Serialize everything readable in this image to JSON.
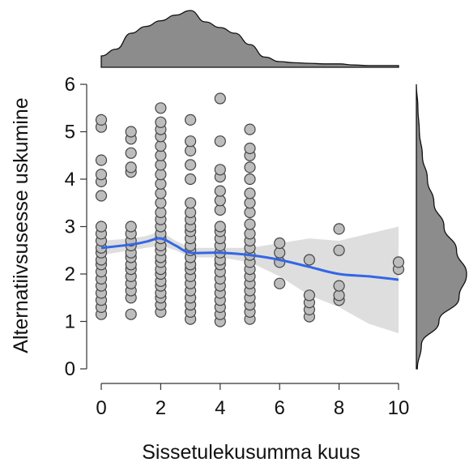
{
  "chart_data": {
    "type": "scatter",
    "title": "",
    "xlabel": "Sissetulekusumma kuus",
    "ylabel": "Alternatiivsusesse uskumine",
    "xlim": [
      0,
      10
    ],
    "ylim": [
      0,
      6
    ],
    "xticks": [
      "0",
      "2",
      "4",
      "6",
      "8",
      "10"
    ],
    "yticks": [
      "0",
      "1",
      "2",
      "3",
      "4",
      "5",
      "6"
    ],
    "grid": false,
    "legend": "none",
    "colors": {
      "points_fill": "#bdbdbd",
      "points_stroke": "#444444",
      "smooth_line": "#3366e6",
      "confidence_band": "#d3d3d3",
      "density_fill": "#8c8c8c"
    },
    "series": [
      {
        "points": [
          [
            0,
            1.15
          ],
          [
            0,
            1.3
          ],
          [
            0,
            1.45
          ],
          [
            0,
            1.6
          ],
          [
            0,
            1.75
          ],
          [
            0,
            1.9
          ],
          [
            0,
            2.05
          ],
          [
            0,
            2.2
          ],
          [
            0,
            2.3
          ],
          [
            0,
            2.45
          ],
          [
            0,
            2.55
          ],
          [
            0,
            2.7
          ],
          [
            0,
            2.85
          ],
          [
            0,
            3.0
          ],
          [
            0,
            3.65
          ],
          [
            0,
            3.95
          ],
          [
            0,
            4.1
          ],
          [
            0,
            4.4
          ],
          [
            0,
            5.1
          ],
          [
            0,
            5.25
          ],
          [
            1,
            1.15
          ],
          [
            1,
            1.5
          ],
          [
            1,
            1.65
          ],
          [
            1,
            1.8
          ],
          [
            1,
            1.95
          ],
          [
            1,
            2.1
          ],
          [
            1,
            2.2
          ],
          [
            1,
            2.35
          ],
          [
            1,
            2.45
          ],
          [
            1,
            2.6
          ],
          [
            1,
            2.7
          ],
          [
            1,
            2.85
          ],
          [
            1,
            3.0
          ],
          [
            1,
            4.15
          ],
          [
            1,
            4.25
          ],
          [
            1,
            4.55
          ],
          [
            1,
            4.85
          ],
          [
            1,
            5.0
          ],
          [
            2,
            1.2
          ],
          [
            2,
            1.35
          ],
          [
            2,
            1.5
          ],
          [
            2,
            1.6
          ],
          [
            2,
            1.75
          ],
          [
            2,
            1.85
          ],
          [
            2,
            2.0
          ],
          [
            2,
            2.1
          ],
          [
            2,
            2.25
          ],
          [
            2,
            2.35
          ],
          [
            2,
            2.5
          ],
          [
            2,
            2.6
          ],
          [
            2,
            2.75
          ],
          [
            2,
            2.85
          ],
          [
            2,
            3.0
          ],
          [
            2,
            3.15
          ],
          [
            2,
            3.3
          ],
          [
            2,
            3.5
          ],
          [
            2,
            3.7
          ],
          [
            2,
            3.9
          ],
          [
            2,
            4.1
          ],
          [
            2,
            4.3
          ],
          [
            2,
            4.5
          ],
          [
            2,
            4.7
          ],
          [
            2,
            4.9
          ],
          [
            2,
            5.05
          ],
          [
            2,
            5.2
          ],
          [
            2,
            5.5
          ],
          [
            3,
            1.05
          ],
          [
            3,
            1.2
          ],
          [
            3,
            1.35
          ],
          [
            3,
            1.5
          ],
          [
            3,
            1.65
          ],
          [
            3,
            1.8
          ],
          [
            3,
            1.95
          ],
          [
            3,
            2.1
          ],
          [
            3,
            2.2
          ],
          [
            3,
            2.35
          ],
          [
            3,
            2.5
          ],
          [
            3,
            2.6
          ],
          [
            3,
            2.75
          ],
          [
            3,
            2.9
          ],
          [
            3,
            3.0
          ],
          [
            3,
            3.15
          ],
          [
            3,
            3.3
          ],
          [
            3,
            3.5
          ],
          [
            3,
            4.0
          ],
          [
            3,
            4.3
          ],
          [
            3,
            4.6
          ],
          [
            3,
            4.8
          ],
          [
            3,
            5.25
          ],
          [
            4,
            1.0
          ],
          [
            4,
            1.15
          ],
          [
            4,
            1.3
          ],
          [
            4,
            1.45
          ],
          [
            4,
            1.6
          ],
          [
            4,
            1.75
          ],
          [
            4,
            1.9
          ],
          [
            4,
            2.05
          ],
          [
            4,
            2.2
          ],
          [
            4,
            2.3
          ],
          [
            4,
            2.45
          ],
          [
            4,
            2.6
          ],
          [
            4,
            2.75
          ],
          [
            4,
            2.9
          ],
          [
            4,
            3.0
          ],
          [
            4,
            3.35
          ],
          [
            4,
            3.55
          ],
          [
            4,
            3.75
          ],
          [
            4,
            4.05
          ],
          [
            4,
            4.2
          ],
          [
            4,
            4.8
          ],
          [
            4,
            5.7
          ],
          [
            5,
            1.05
          ],
          [
            5,
            1.2
          ],
          [
            5,
            1.35
          ],
          [
            5,
            1.5
          ],
          [
            5,
            1.65
          ],
          [
            5,
            1.8
          ],
          [
            5,
            1.95
          ],
          [
            5,
            2.1
          ],
          [
            5,
            2.25
          ],
          [
            5,
            2.4
          ],
          [
            5,
            2.55
          ],
          [
            5,
            2.7
          ],
          [
            5,
            2.85
          ],
          [
            5,
            3.05
          ],
          [
            5,
            3.3
          ],
          [
            5,
            3.5
          ],
          [
            5,
            3.7
          ],
          [
            5,
            4.0
          ],
          [
            5,
            4.25
          ],
          [
            5,
            4.5
          ],
          [
            5,
            4.65
          ],
          [
            5,
            5.05
          ],
          [
            6,
            1.8
          ],
          [
            6,
            2.25
          ],
          [
            6,
            2.45
          ],
          [
            6,
            2.65
          ],
          [
            7,
            1.1
          ],
          [
            7,
            1.25
          ],
          [
            7,
            1.4
          ],
          [
            7,
            1.55
          ],
          [
            7,
            2.3
          ],
          [
            8,
            1.45
          ],
          [
            8,
            1.55
          ],
          [
            8,
            1.75
          ],
          [
            8,
            2.5
          ],
          [
            8,
            2.95
          ],
          [
            10,
            2.1
          ],
          [
            10,
            2.25
          ]
        ]
      }
    ],
    "smooth_line": {
      "x": [
        0,
        1,
        1.5,
        2,
        2.5,
        3,
        4,
        5,
        6,
        7,
        8,
        9,
        10
      ],
      "y": [
        2.55,
        2.62,
        2.68,
        2.75,
        2.6,
        2.45,
        2.45,
        2.4,
        2.3,
        2.15,
        2.0,
        1.95,
        1.88
      ],
      "lower": [
        2.4,
        2.5,
        2.55,
        2.6,
        2.5,
        2.35,
        2.35,
        2.25,
        1.95,
        1.55,
        1.3,
        0.95,
        0.75
      ],
      "upper": [
        2.7,
        2.75,
        2.8,
        2.9,
        2.7,
        2.55,
        2.55,
        2.55,
        2.65,
        2.75,
        2.7,
        2.85,
        3.0
      ]
    },
    "x_density": {
      "x": [
        0,
        0.5,
        1,
        1.5,
        2,
        2.5,
        3,
        3.5,
        4,
        4.5,
        5,
        5.5,
        6,
        6.5,
        7,
        7.5,
        8,
        8.5,
        9,
        9.5,
        10
      ],
      "d": [
        0.2,
        0.32,
        0.6,
        0.72,
        0.82,
        0.92,
        1.0,
        0.8,
        0.7,
        0.6,
        0.4,
        0.18,
        0.1,
        0.08,
        0.07,
        0.06,
        0.06,
        0.04,
        0.03,
        0.03,
        0.03
      ]
    },
    "y_density": {
      "y": [
        0,
        0.5,
        1.0,
        1.5,
        2.0,
        2.5,
        3.0,
        3.5,
        4.0,
        4.5,
        5.0,
        5.5,
        6.0
      ],
      "d": [
        0.02,
        0.1,
        0.45,
        0.85,
        1.0,
        0.8,
        0.55,
        0.35,
        0.22,
        0.12,
        0.06,
        0.03,
        0.0
      ]
    }
  }
}
